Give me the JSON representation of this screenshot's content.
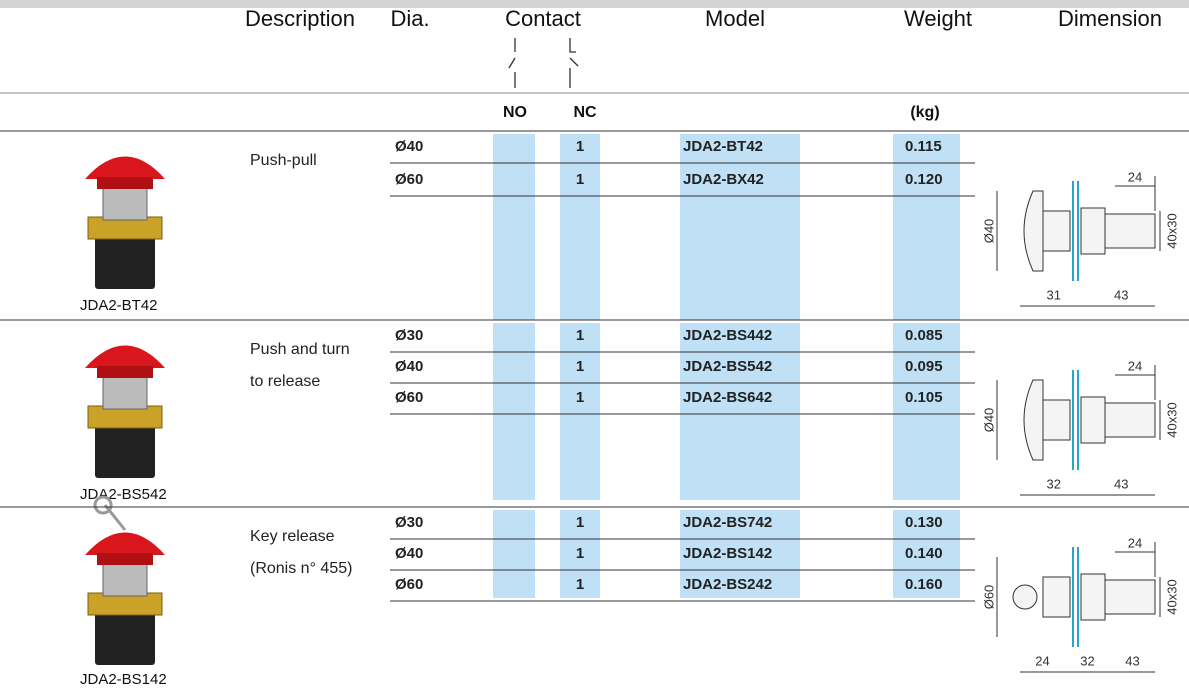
{
  "header": {
    "columns": [
      "Description",
      "Dia.",
      "Contact",
      "Model",
      "Weight",
      "Dimension"
    ],
    "subheaders": [
      "NO",
      "NC",
      "(kg)"
    ]
  },
  "groups": [
    {
      "label": "JDA2-BT42",
      "description": [
        "Push-pull"
      ],
      "rows": [
        {
          "dia": "Ø40",
          "nc": "1",
          "model": "JDA2-BT42",
          "weight": "0.115"
        },
        {
          "dia": "Ø60",
          "nc": "1",
          "model": "JDA2-BX42",
          "weight": "0.120"
        }
      ],
      "dimension": {
        "top": "24",
        "side": "40x30",
        "diameter": "Ø40",
        "bottom": [
          "31",
          "43"
        ]
      }
    },
    {
      "label": "JDA2-BS542",
      "description": [
        "Push and turn",
        "to release"
      ],
      "rows": [
        {
          "dia": "Ø30",
          "nc": "1",
          "model": "JDA2-BS442",
          "weight": "0.085"
        },
        {
          "dia": "Ø40",
          "nc": "1",
          "model": "JDA2-BS542",
          "weight": "0.095"
        },
        {
          "dia": "Ø60",
          "nc": "1",
          "model": "JDA2-BS642",
          "weight": "0.105"
        }
      ],
      "dimension": {
        "top": "24",
        "side": "40x30",
        "diameter": "Ø40",
        "bottom": [
          "32",
          "43"
        ]
      }
    },
    {
      "label": "JDA2-BS142",
      "description": [
        "Key release",
        "(Ronis n° 455)"
      ],
      "rows": [
        {
          "dia": "Ø30",
          "nc": "1",
          "model": "JDA2-BS742",
          "weight": "0.130"
        },
        {
          "dia": "Ø40",
          "nc": "1",
          "model": "JDA2-BS142",
          "weight": "0.140"
        },
        {
          "dia": "Ø60",
          "nc": "1",
          "model": "JDA2-BS242",
          "weight": "0.160"
        }
      ],
      "dimension": {
        "top": "24",
        "side": "40x30",
        "diameter": "Ø60",
        "bottom": [
          "24",
          "32",
          "43"
        ]
      }
    }
  ]
}
